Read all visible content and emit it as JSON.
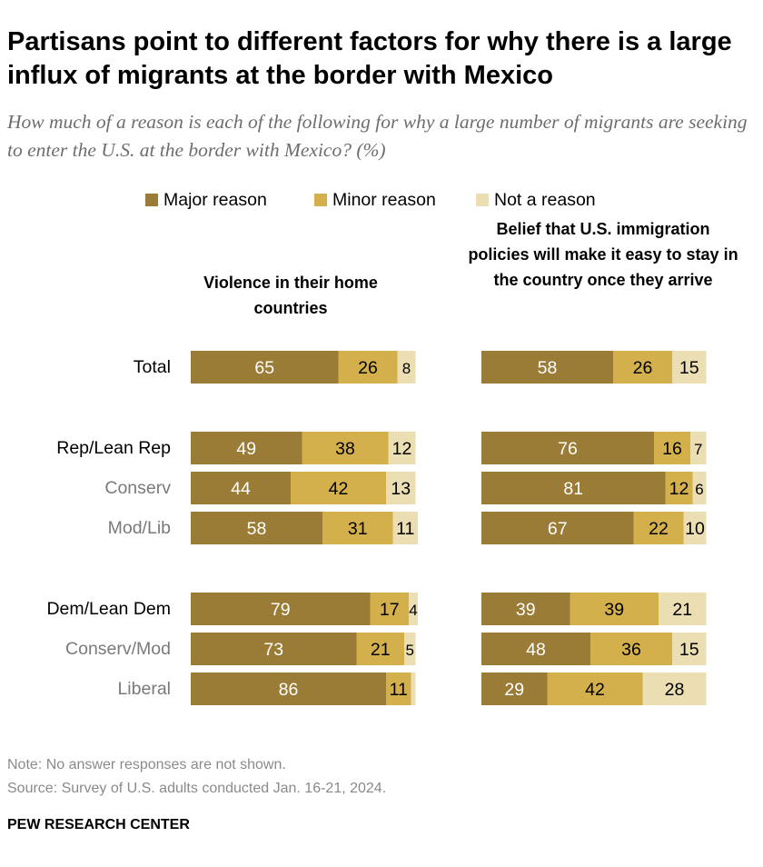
{
  "title": "Partisans point to different factors for why there is a large influx of migrants at the border with Mexico",
  "subtitle": "How much of a reason is each of the following for why a large number of migrants are seeking to enter the U.S. at the border with Mexico? (%)",
  "legend": [
    {
      "label": "Major reason",
      "color": "#9a7c37"
    },
    {
      "label": "Minor reason",
      "color": "#d4b04d"
    },
    {
      "label": "Not a reason",
      "color": "#ebdeb2"
    }
  ],
  "chart_data": {
    "type": "bar",
    "stacked": true,
    "orientation": "horizontal",
    "categories": [
      "Total",
      "Rep/Lean Rep",
      "Conserv",
      "Mod/Lib",
      "Dem/Lean Dem",
      "Conserv/Mod",
      "Liberal"
    ],
    "panels": [
      {
        "title": "Violence in their home countries",
        "series": [
          {
            "name": "Major reason",
            "values": [
              65,
              49,
              44,
              58,
              79,
              73,
              86
            ]
          },
          {
            "name": "Minor reason",
            "values": [
              26,
              38,
              42,
              31,
              17,
              21,
              11
            ]
          },
          {
            "name": "Not a reason",
            "values": [
              8,
              12,
              13,
              11,
              4,
              5,
              2
            ]
          }
        ],
        "labels_hidden": [
          [],
          [],
          [],
          [],
          [],
          [],
          [
            2
          ]
        ]
      },
      {
        "title": "Belief that U.S. immigration policies will make it easy to stay in the country once they arrive",
        "series": [
          {
            "name": "Major reason",
            "values": [
              58,
              76,
              81,
              67,
              39,
              48,
              29
            ]
          },
          {
            "name": "Minor reason",
            "values": [
              26,
              16,
              12,
              22,
              39,
              36,
              42
            ]
          },
          {
            "name": "Not a reason",
            "values": [
              15,
              7,
              6,
              10,
              21,
              15,
              28
            ]
          }
        ],
        "labels_hidden": [
          [],
          [],
          [],
          [],
          [],
          [],
          []
        ]
      }
    ],
    "xlim": [
      0,
      100
    ]
  },
  "rows": [
    {
      "label": "Total",
      "style": "main"
    },
    {
      "label": "Rep/Lean Rep",
      "style": "main"
    },
    {
      "label": "Conserv",
      "style": "sub"
    },
    {
      "label": "Mod/Lib",
      "style": "sub"
    },
    {
      "label": "Dem/Lean Dem",
      "style": "main"
    },
    {
      "label": "Conserv/Mod",
      "style": "sub"
    },
    {
      "label": "Liberal",
      "style": "sub"
    }
  ],
  "notes": {
    "note": "Note: No answer responses are not shown.",
    "source": "Source: Survey of U.S. adults conducted Jan. 16-21, 2024."
  },
  "footer": "PEW RESEARCH CENTER"
}
